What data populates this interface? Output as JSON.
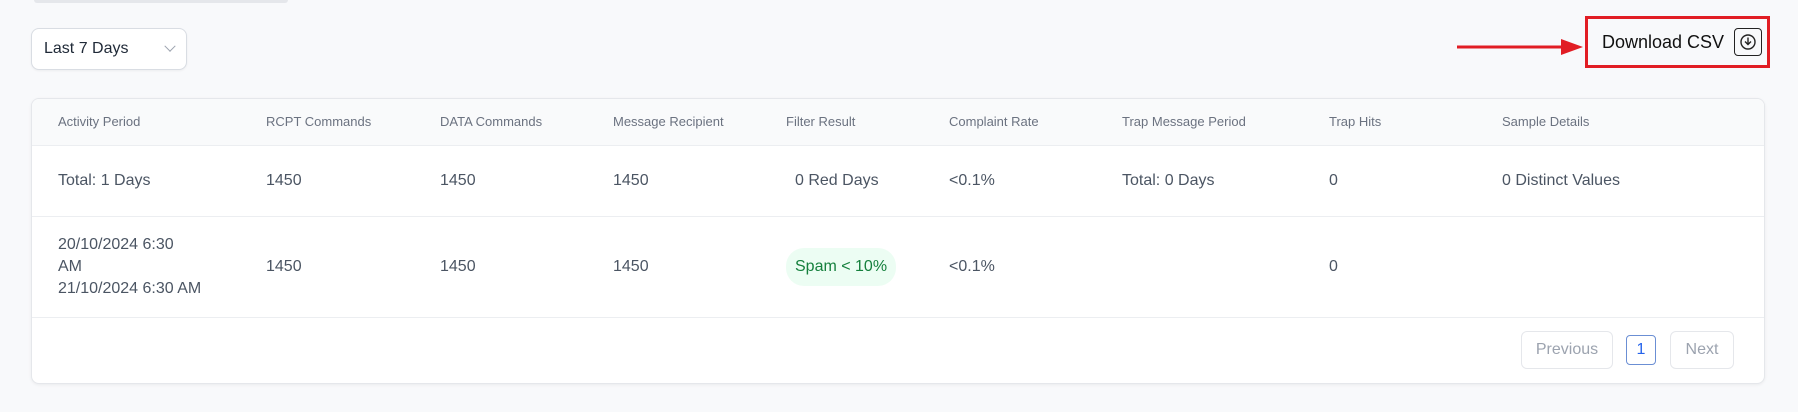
{
  "range_select": {
    "value": "Last 7 Days"
  },
  "download": {
    "label": "Download CSV",
    "icon": "download-circle-icon"
  },
  "annotation": {
    "color": "#e11d24"
  },
  "table": {
    "columns": [
      "Activity Period",
      "RCPT Commands",
      "DATA Commands",
      "Message Recipient",
      "Filter Result",
      "Complaint Rate",
      "Trap Message Period",
      "Trap Hits",
      "Sample Details"
    ],
    "summary_row": {
      "activity_period": "Total: 1 Days",
      "rcpt": "1450",
      "data": "1450",
      "recipient": "1450",
      "filter_result": "0 Red Days",
      "complaint_rate": "<0.1%",
      "trap_period": "Total: 0 Days",
      "trap_hits": "0",
      "sample_details": "0 Distinct Values"
    },
    "rows": [
      {
        "period_start_a": "20/10/2024 6:30",
        "period_start_b": "AM",
        "period_end": "21/10/2024 6:30 AM",
        "rcpt": "1450",
        "data": "1450",
        "recipient": "1450",
        "filter_result": "Spam < 10%",
        "complaint_rate": "<0.1%",
        "trap_period": "",
        "trap_hits": "0",
        "sample_details": ""
      }
    ]
  },
  "pagination": {
    "previous": "Previous",
    "page": "1",
    "next": "Next"
  },
  "colors": {
    "pill_bg": "#ecfdf3",
    "pill_text": "#15803d",
    "active_page": "#2563eb"
  }
}
